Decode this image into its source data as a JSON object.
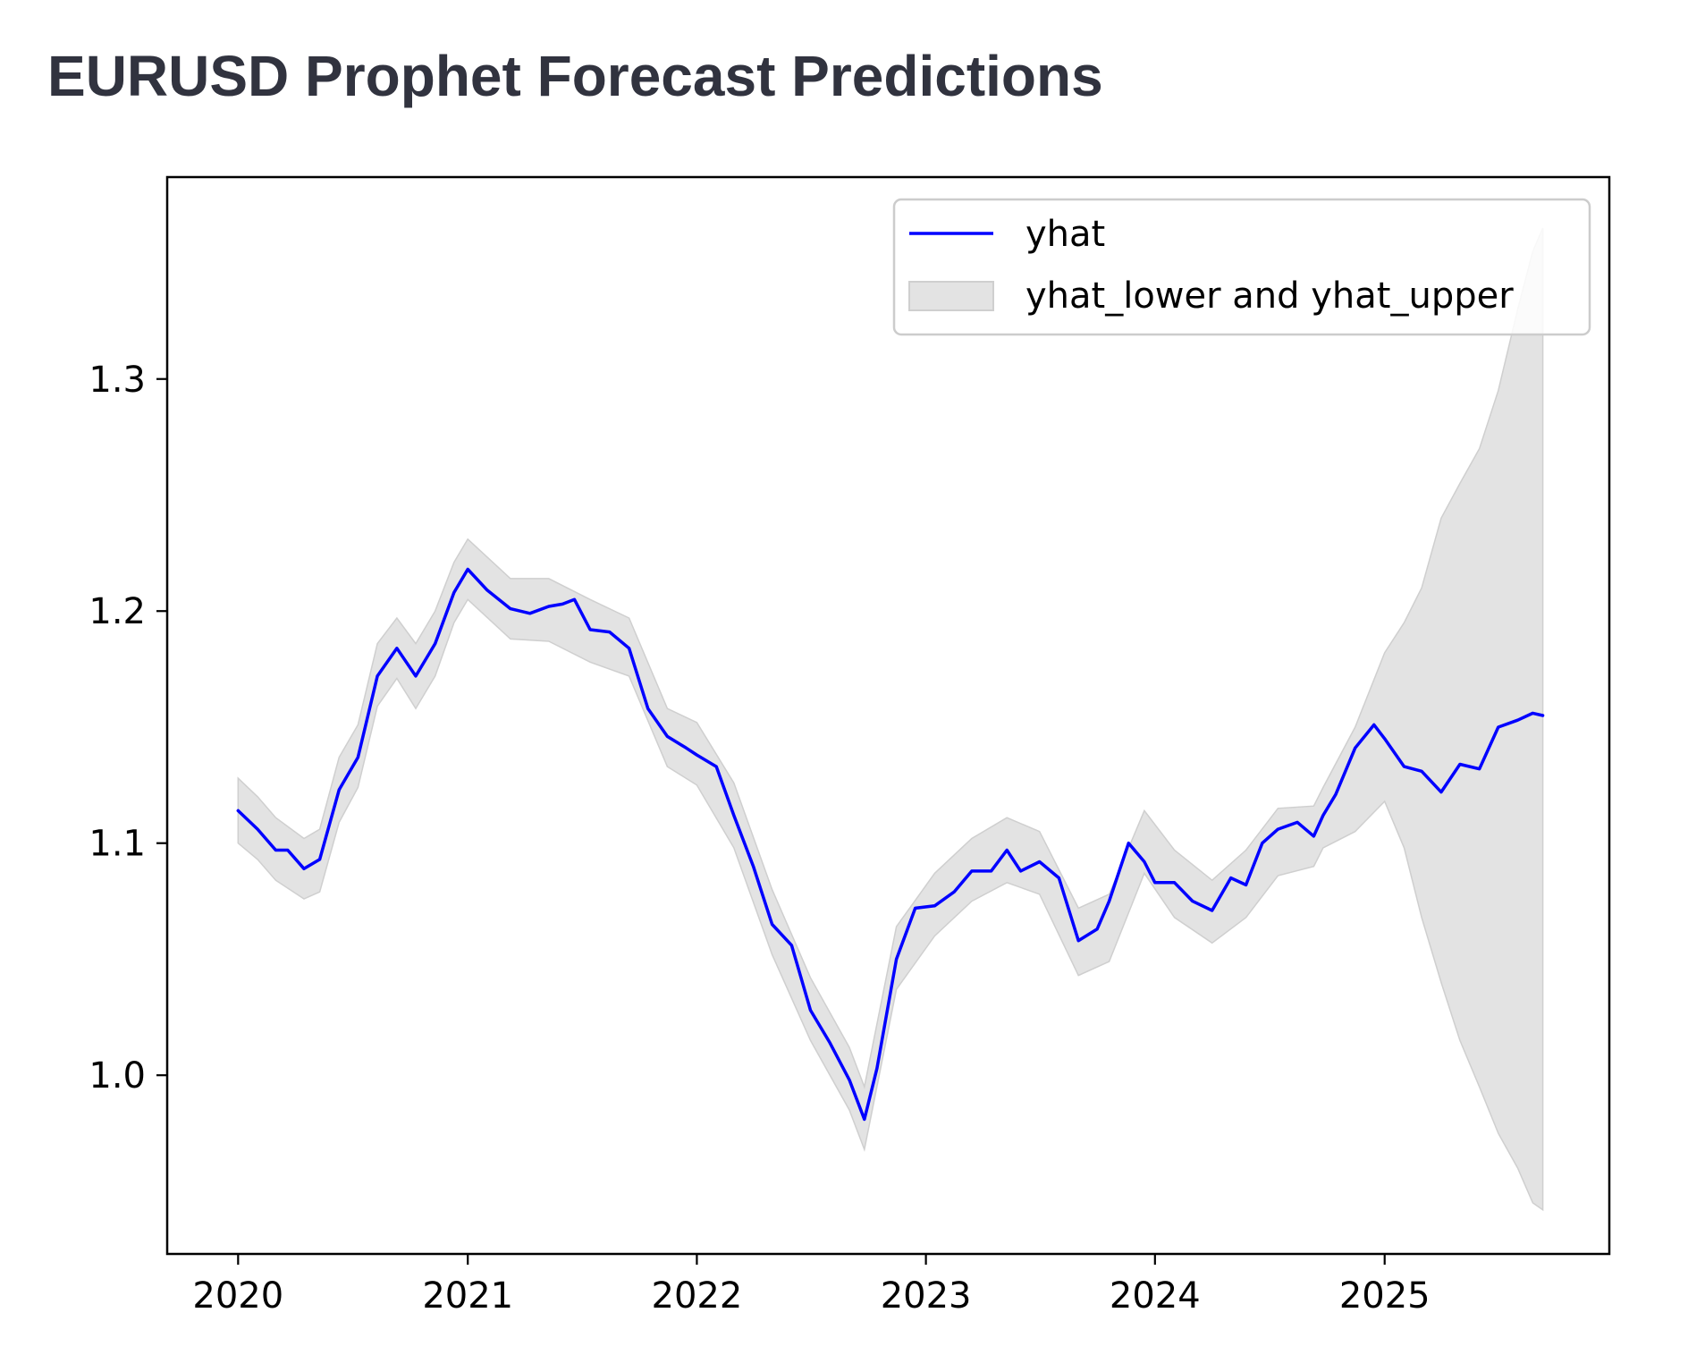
{
  "page": {
    "title": "EURUSD Prophet Forecast Predictions"
  },
  "colors": {
    "line": "#0000ff",
    "band": "#e3e3e3",
    "band_edge": "#cfcfcf",
    "title": "#31333f"
  },
  "chart_data": {
    "type": "line",
    "title": "",
    "xlabel": "",
    "ylabel": "",
    "x_axis": "date",
    "xlim": [
      "2019-09-10",
      "2025-12-25"
    ],
    "ylim": [
      0.923,
      1.387
    ],
    "grid": false,
    "legend_position": "top-right",
    "x_ticks": [
      "2020",
      "2021",
      "2022",
      "2023",
      "2024",
      "2025"
    ],
    "y_ticks": [
      "1.0",
      "1.1",
      "1.2",
      "1.3"
    ],
    "legend": [
      {
        "label": "yhat",
        "kind": "line"
      },
      {
        "label": "yhat_lower and yhat_upper",
        "kind": "band"
      }
    ],
    "series": [
      {
        "name": "yhat",
        "x": [
          "2020-01-01",
          "2020-02-01",
          "2020-03-01",
          "2020-03-20",
          "2020-04-15",
          "2020-05-10",
          "2020-06-10",
          "2020-07-10",
          "2020-08-10",
          "2020-09-10",
          "2020-10-10",
          "2020-11-10",
          "2020-12-10",
          "2021-01-01",
          "2021-02-01",
          "2021-03-10",
          "2021-04-10",
          "2021-05-10",
          "2021-06-01",
          "2021-06-20",
          "2021-07-15",
          "2021-08-15",
          "2021-09-15",
          "2021-10-15",
          "2021-11-15",
          "2021-12-15",
          "2022-01-01",
          "2022-02-01",
          "2022-03-01",
          "2022-04-01",
          "2022-05-01",
          "2022-06-01",
          "2022-07-01",
          "2022-08-01",
          "2022-09-01",
          "2022-09-25",
          "2022-10-15",
          "2022-11-15",
          "2022-12-15",
          "2023-01-15",
          "2023-02-15",
          "2023-03-15",
          "2023-04-15",
          "2023-05-10",
          "2023-06-01",
          "2023-07-01",
          "2023-08-01",
          "2023-09-01",
          "2023-10-01",
          "2023-10-20",
          "2023-11-20",
          "2023-12-15",
          "2024-01-01",
          "2024-02-01",
          "2024-03-01",
          "2024-04-01",
          "2024-05-01",
          "2024-05-25",
          "2024-06-20",
          "2024-07-15",
          "2024-08-15",
          "2024-09-10",
          "2024-09-25",
          "2024-10-15",
          "2024-11-15",
          "2024-12-15",
          "2025-01-01",
          "2025-02-01",
          "2025-03-01",
          "2025-04-01",
          "2025-05-01",
          "2025-06-01",
          "2025-07-01",
          "2025-08-01",
          "2025-08-25",
          "2025-09-10"
        ],
        "values": [
          1.114,
          1.106,
          1.097,
          1.097,
          1.089,
          1.093,
          1.123,
          1.137,
          1.172,
          1.184,
          1.172,
          1.186,
          1.208,
          1.218,
          1.209,
          1.201,
          1.199,
          1.202,
          1.203,
          1.205,
          1.192,
          1.191,
          1.184,
          1.158,
          1.146,
          1.141,
          1.138,
          1.133,
          1.112,
          1.09,
          1.065,
          1.056,
          1.028,
          1.014,
          0.998,
          0.981,
          1.003,
          1.05,
          1.072,
          1.073,
          1.079,
          1.088,
          1.088,
          1.097,
          1.088,
          1.092,
          1.085,
          1.058,
          1.063,
          1.075,
          1.1,
          1.092,
          1.083,
          1.083,
          1.075,
          1.071,
          1.085,
          1.082,
          1.1,
          1.106,
          1.109,
          1.103,
          1.112,
          1.121,
          1.141,
          1.151,
          1.145,
          1.133,
          1.131,
          1.122,
          1.134,
          1.132,
          1.15,
          1.153,
          1.156,
          1.155
        ]
      },
      {
        "name": "yhat_lower and yhat_upper",
        "x": [
          "2020-01-01",
          "2020-02-01",
          "2020-03-01",
          "2020-04-15",
          "2020-05-10",
          "2020-06-10",
          "2020-07-10",
          "2020-08-10",
          "2020-09-10",
          "2020-10-10",
          "2020-11-10",
          "2020-12-10",
          "2021-01-01",
          "2021-03-10",
          "2021-05-10",
          "2021-07-15",
          "2021-09-15",
          "2021-11-15",
          "2022-01-01",
          "2022-03-01",
          "2022-05-01",
          "2022-07-01",
          "2022-09-01",
          "2022-09-25",
          "2022-11-15",
          "2023-01-15",
          "2023-03-15",
          "2023-05-10",
          "2023-07-01",
          "2023-09-01",
          "2023-10-20",
          "2023-12-15",
          "2024-02-01",
          "2024-04-01",
          "2024-05-25",
          "2024-07-15",
          "2024-09-10",
          "2024-09-25",
          "2024-11-15",
          "2025-01-01",
          "2025-02-01",
          "2025-03-01",
          "2025-04-01",
          "2025-05-01",
          "2025-06-01",
          "2025-07-01",
          "2025-08-01",
          "2025-08-25",
          "2025-09-10"
        ],
        "lower": [
          1.1,
          1.093,
          1.084,
          1.076,
          1.079,
          1.109,
          1.124,
          1.159,
          1.171,
          1.158,
          1.172,
          1.195,
          1.205,
          1.188,
          1.187,
          1.178,
          1.172,
          1.133,
          1.125,
          1.098,
          1.052,
          1.015,
          0.985,
          0.968,
          1.037,
          1.06,
          1.075,
          1.083,
          1.078,
          1.043,
          1.049,
          1.087,
          1.068,
          1.057,
          1.068,
          1.086,
          1.09,
          1.098,
          1.105,
          1.118,
          1.098,
          1.068,
          1.04,
          1.015,
          0.995,
          0.975,
          0.96,
          0.945,
          0.942
        ],
        "upper": [
          1.128,
          1.12,
          1.111,
          1.102,
          1.106,
          1.137,
          1.151,
          1.186,
          1.197,
          1.186,
          1.2,
          1.221,
          1.231,
          1.214,
          1.214,
          1.205,
          1.197,
          1.158,
          1.152,
          1.126,
          1.08,
          1.042,
          1.012,
          0.995,
          1.064,
          1.087,
          1.102,
          1.111,
          1.105,
          1.072,
          1.078,
          1.114,
          1.097,
          1.084,
          1.097,
          1.115,
          1.116,
          1.124,
          1.15,
          1.182,
          1.195,
          1.21,
          1.24,
          1.255,
          1.27,
          1.295,
          1.33,
          1.355,
          1.365
        ]
      }
    ]
  }
}
